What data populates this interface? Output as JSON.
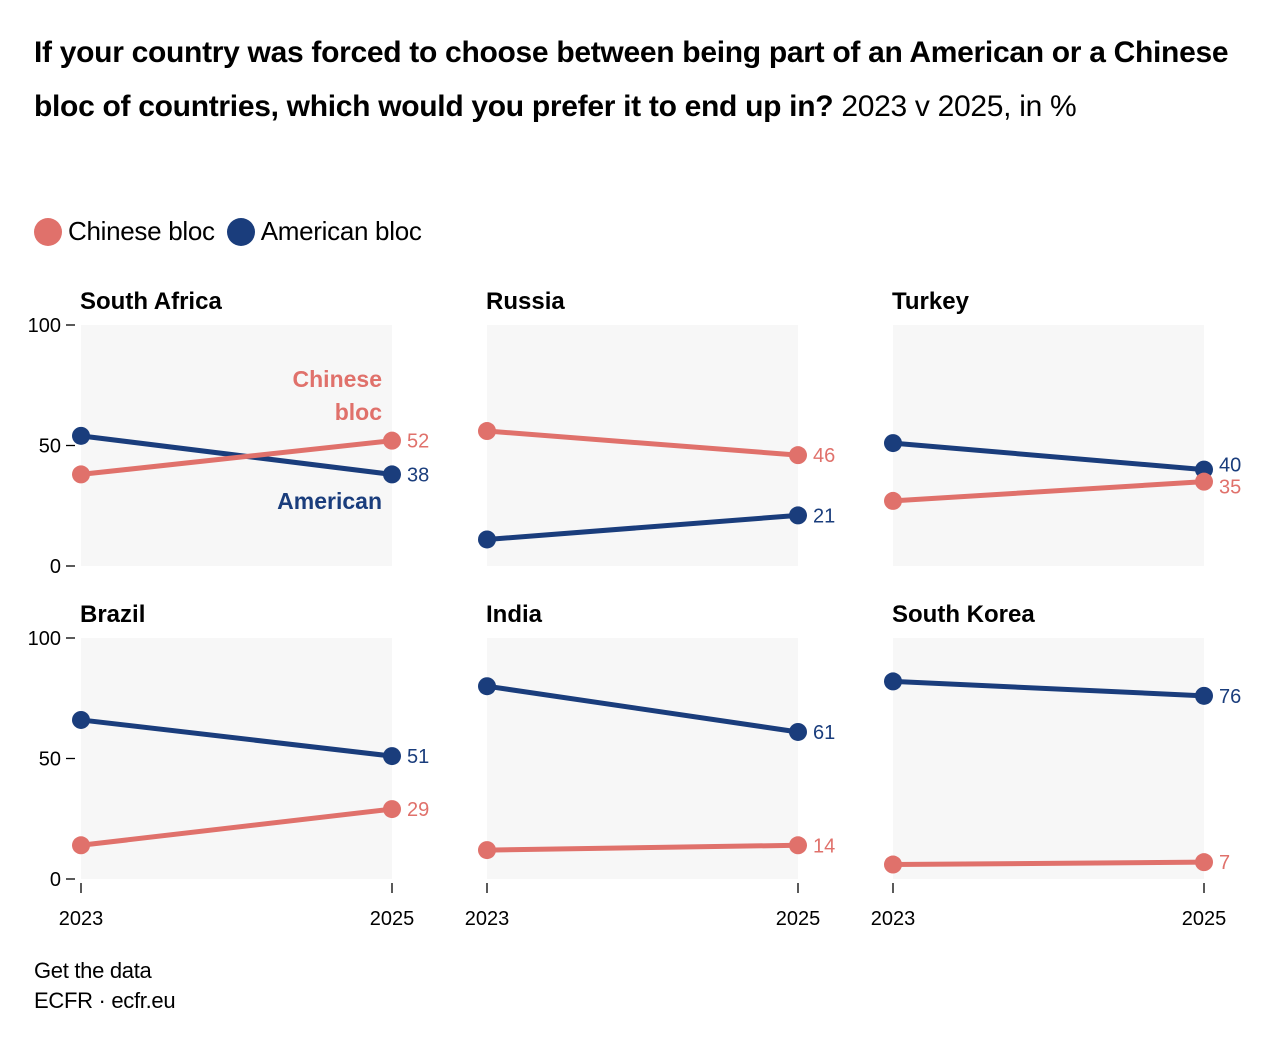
{
  "title": {
    "bold": "If your country was forced to choose between being part of an American or a Chinese bloc of countries, which would you prefer it to end up in?",
    "subtitle": "2023 v 2025, in %"
  },
  "legend": [
    {
      "name": "Chinese bloc",
      "color": "#e0716b"
    },
    {
      "name": "American bloc",
      "color": "#1a3d7c"
    }
  ],
  "footer": {
    "get_data": "Get the data",
    "source": "ECFR · ecfr.eu"
  },
  "chart_data": {
    "type": "line",
    "layout": "small-multiples",
    "title": "If your country was forced to choose between being part of an American or a Chinese bloc of countries, which would you prefer it to end up in? 2023 v 2025, in %",
    "x": [
      "2023",
      "2025"
    ],
    "ylim": [
      0,
      100
    ],
    "yticks": [
      0,
      50,
      100
    ],
    "background": "#f7f7f7",
    "series_colors": {
      "Chinese bloc": "#e0716b",
      "American bloc": "#1a3d7c"
    },
    "inline_labels": {
      "chinese": "Chinese bloc",
      "american": "American"
    },
    "panels": [
      {
        "name": "South Africa",
        "series": [
          {
            "name": "Chinese bloc",
            "values": [
              38,
              52
            ]
          },
          {
            "name": "American bloc",
            "values": [
              54,
              38
            ]
          }
        ]
      },
      {
        "name": "Russia",
        "series": [
          {
            "name": "Chinese bloc",
            "values": [
              56,
              46
            ]
          },
          {
            "name": "American bloc",
            "values": [
              11,
              21
            ]
          }
        ]
      },
      {
        "name": "Turkey",
        "series": [
          {
            "name": "Chinese bloc",
            "values": [
              27,
              35
            ]
          },
          {
            "name": "American bloc",
            "values": [
              51,
              40
            ]
          }
        ]
      },
      {
        "name": "Brazil",
        "series": [
          {
            "name": "Chinese bloc",
            "values": [
              14,
              29
            ]
          },
          {
            "name": "American bloc",
            "values": [
              66,
              51
            ]
          }
        ]
      },
      {
        "name": "India",
        "series": [
          {
            "name": "Chinese bloc",
            "values": [
              12,
              14
            ]
          },
          {
            "name": "American bloc",
            "values": [
              80,
              61
            ]
          }
        ]
      },
      {
        "name": "South Korea",
        "series": [
          {
            "name": "Chinese bloc",
            "values": [
              6,
              7
            ]
          },
          {
            "name": "American bloc",
            "values": [
              82,
              76
            ]
          }
        ]
      }
    ]
  }
}
